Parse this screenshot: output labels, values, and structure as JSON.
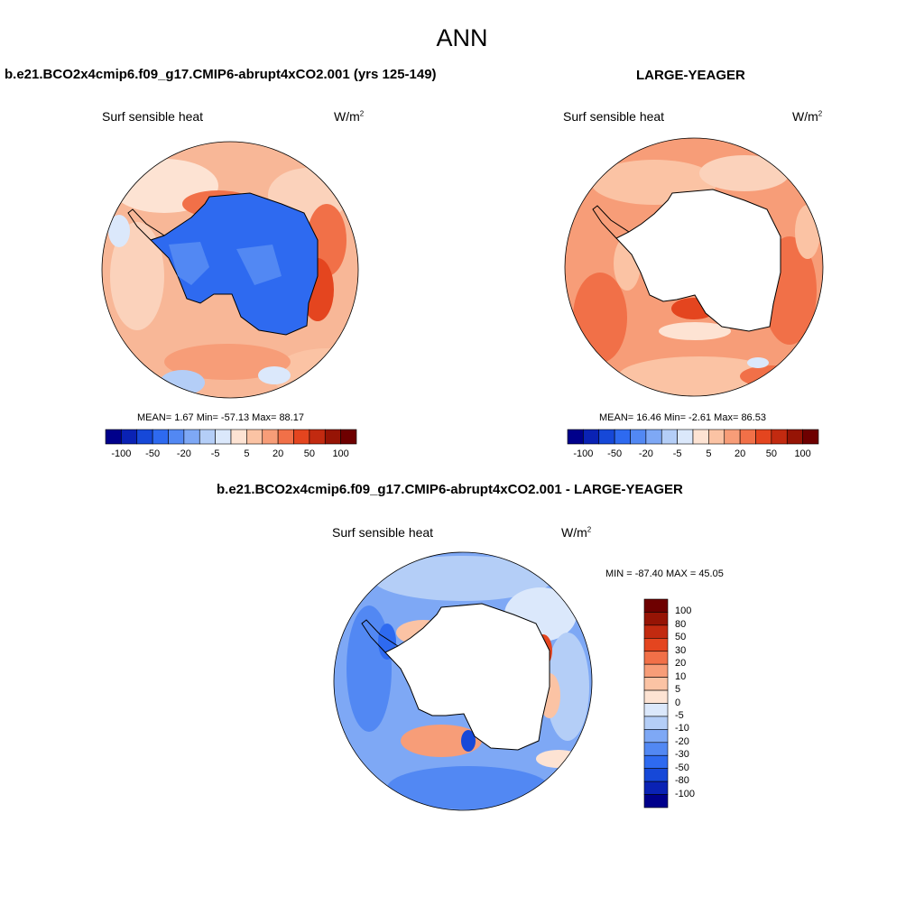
{
  "page_title": "ANN",
  "panels": [
    {
      "id": "model",
      "case_title": "b.e21.BCO2x4cmip6.f09_g17.CMIP6-abrupt4xCO2.001 (yrs 125-149)",
      "variable": "Surf sensible heat",
      "unit_base": "W/m",
      "unit_exp": "2",
      "stats": "MEAN=   1.67  Min= -57.13  Max=  88.17",
      "colorbar_labels": [
        "-100",
        "-50",
        "-20",
        "-5",
        "5",
        "20",
        "50",
        "100"
      ]
    },
    {
      "id": "obs",
      "case_title": "LARGE-YEAGER",
      "variable": "Surf sensible heat",
      "unit_base": "W/m",
      "unit_exp": "2",
      "stats": "MEAN=  16.46  Min=  -2.61  Max=  86.53",
      "colorbar_labels": [
        "-100",
        "-50",
        "-20",
        "-5",
        "5",
        "20",
        "50",
        "100"
      ]
    },
    {
      "id": "diff",
      "case_title": "b.e21.BCO2x4cmip6.f09_g17.CMIP6-abrupt4xCO2.001 - LARGE-YEAGER",
      "variable": "Surf sensible heat",
      "unit_base": "W/m",
      "unit_exp": "2",
      "stats": "MIN = -87.40 MAX =  45.05",
      "colorbar_labels": [
        "100",
        "80",
        "50",
        "30",
        "20",
        "10",
        "5",
        "0",
        "-5",
        "-10",
        "-20",
        "-30",
        "-50",
        "-80",
        "-100"
      ]
    }
  ],
  "colors": {
    "scale_blue_to_red": [
      "#00008b",
      "#0a22b4",
      "#1648d8",
      "#2e6af0",
      "#5288f3",
      "#7ea8f5",
      "#b4cef7",
      "#dbe8fb",
      "#fde3d3",
      "#fbc3a4",
      "#f79d78",
      "#f17048",
      "#e4451f",
      "#c22a10",
      "#961405",
      "#6e0000"
    ],
    "land_mask": "#ffffff",
    "coastline": "#000000"
  }
}
